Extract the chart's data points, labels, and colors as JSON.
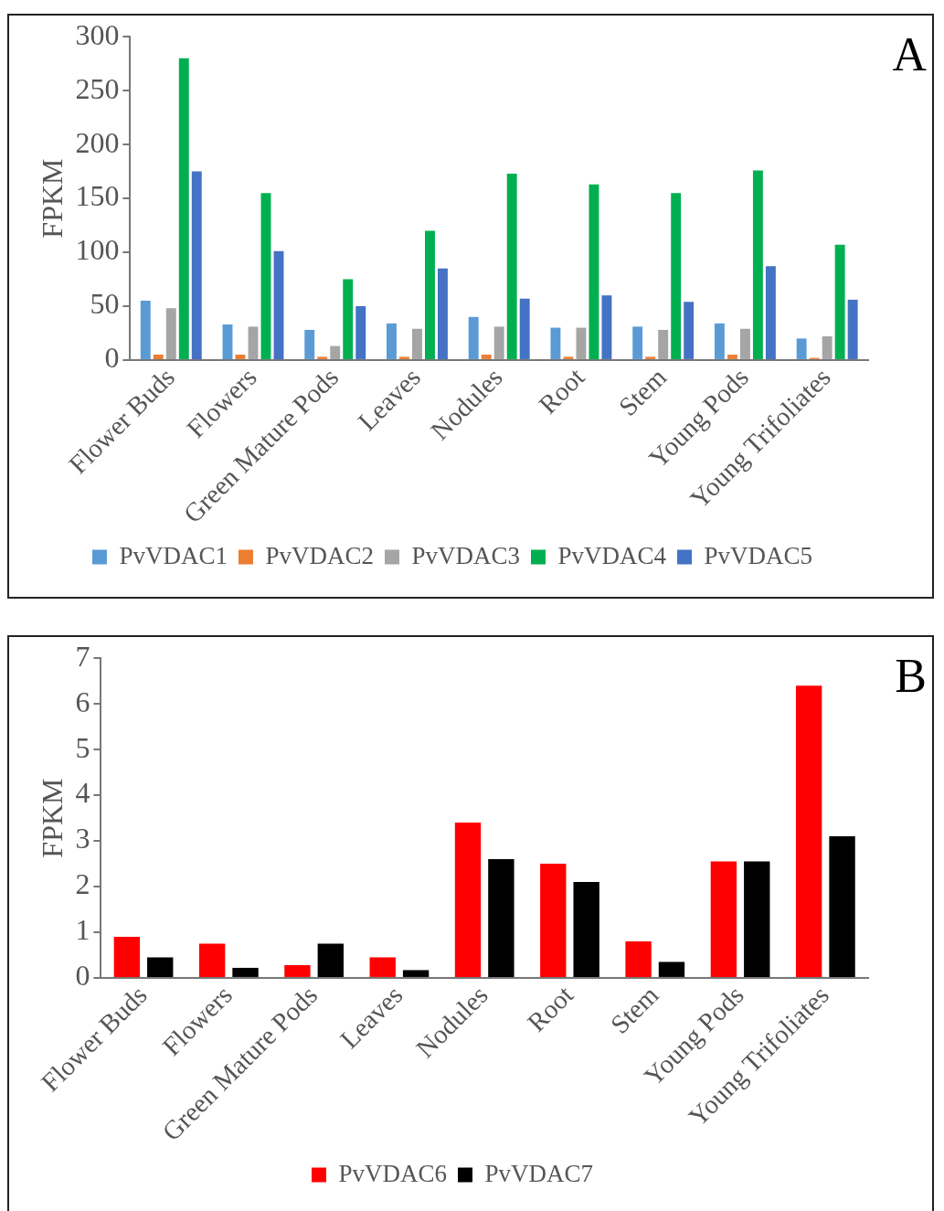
{
  "chart_data": [
    {
      "type": "bar",
      "ylabel": "FPKM",
      "annotations": [
        "A"
      ],
      "categories": [
        "Flower Buds",
        "Flowers",
        "Green Mature Pods",
        "Leaves",
        "Nodules",
        "Root",
        "Stem",
        "Young Pods",
        "Young Trifoliates"
      ],
      "series": [
        {
          "name": "PvVDAC1",
          "color": "#5b9bd5",
          "values": [
            55,
            33,
            28,
            34,
            40,
            30,
            31,
            34,
            20
          ]
        },
        {
          "name": "PvVDAC2",
          "color": "#ed7d31",
          "values": [
            5,
            5,
            3,
            3,
            5,
            3,
            3,
            5,
            2
          ]
        },
        {
          "name": "PvVDAC3",
          "color": "#a5a5a5",
          "values": [
            48,
            31,
            13,
            29,
            31,
            30,
            28,
            29,
            22
          ]
        },
        {
          "name": "PvVDAC4",
          "color": "#00b050",
          "values": [
            280,
            155,
            75,
            120,
            173,
            163,
            155,
            176,
            107
          ]
        },
        {
          "name": "PvVDAC5",
          "color": "#4472c4",
          "values": [
            175,
            101,
            50,
            85,
            57,
            60,
            54,
            87,
            56
          ]
        }
      ],
      "ylim": [
        0,
        300
      ],
      "yticks": [
        0,
        50,
        100,
        150,
        200,
        250,
        300
      ],
      "grid": false,
      "legend": "bottom"
    },
    {
      "type": "bar",
      "ylabel": "FPKM",
      "annotations": [
        "B"
      ],
      "categories": [
        "Flower Buds",
        "Flowers",
        "Green Mature Pods",
        "Leaves",
        "Nodules",
        "Root",
        "Stem",
        "Young Pods",
        "Young Trifoliates"
      ],
      "series": [
        {
          "name": "PvVDAC6",
          "color": "#ff0000",
          "values": [
            0.9,
            0.75,
            0.28,
            0.45,
            3.4,
            2.5,
            0.8,
            2.55,
            6.4
          ]
        },
        {
          "name": "PvVDAC7",
          "color": "#000000",
          "values": [
            0.45,
            0.22,
            0.75,
            0.17,
            2.6,
            2.1,
            0.35,
            2.55,
            3.1
          ]
        }
      ],
      "ylim": [
        0,
        7
      ],
      "yticks": [
        0,
        1,
        2,
        3,
        4,
        5,
        6,
        7
      ],
      "grid": false,
      "legend": "bottom"
    }
  ]
}
